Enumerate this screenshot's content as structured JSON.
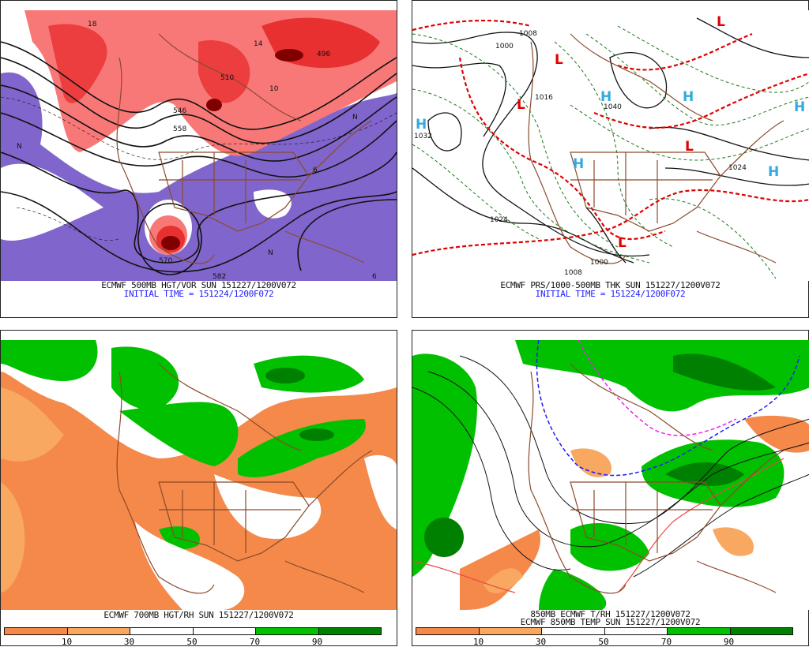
{
  "panels": [
    {
      "id": "500mb",
      "caption": "ECMWF 500MB HGT/VOR SUN 151227/1200V072",
      "initial_time": "INITIAL TIME = 151224/1200F072",
      "contour_labels": [
        "558",
        "546",
        "510",
        "496",
        "570",
        "582",
        "N",
        "N",
        "N",
        "6",
        "6",
        "10",
        "14",
        "18"
      ]
    },
    {
      "id": "mslp",
      "caption": "ECMWF PRS/1000-500MB THK SUN 151227/1200V072",
      "initial_time": "INITIAL TIME = 151224/1200F072",
      "pressure_centers": [
        "H",
        "H",
        "H",
        "H",
        "H",
        "H",
        "L",
        "L",
        "L",
        "L",
        "L"
      ],
      "contour_labels": [
        "1032",
        "1024",
        "1024",
        "1016",
        "1008",
        "1000",
        "1000",
        "1008",
        "1040"
      ]
    },
    {
      "id": "700mb",
      "caption": "ECMWF 700MB HGT/RH SUN 151227/1200V072",
      "colorbar_ticks": [
        "10",
        "30",
        "50",
        "70",
        "90"
      ]
    },
    {
      "id": "850mb",
      "caption": "850MB ECMWF T/RH 151227/1200V072",
      "caption2": "ECMWF 850MB TEMP SUN 151227/1200V072",
      "colorbar_ticks": [
        "10",
        "30",
        "50",
        "70",
        "90"
      ]
    }
  ],
  "colors": {
    "vor_light": "#f87878",
    "vor_mid": "#e83030",
    "vor_dark": "#800000",
    "vor_neg": "#8066cc",
    "rh_dry1": "#f4894a",
    "rh_dry2": "#f8a860",
    "rh_wet1": "#00c000",
    "rh_wet2": "#008000",
    "borders": "#8b4a2b"
  }
}
